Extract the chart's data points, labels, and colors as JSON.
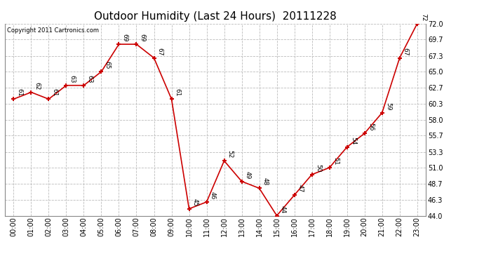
{
  "title": "Outdoor Humidity (Last 24 Hours)  20111228",
  "copyright": "Copyright 2011 Cartronics.com",
  "x_labels": [
    "00:00",
    "01:00",
    "02:00",
    "03:00",
    "04:00",
    "05:00",
    "06:00",
    "07:00",
    "08:00",
    "09:00",
    "10:00",
    "11:00",
    "12:00",
    "13:00",
    "14:00",
    "15:00",
    "16:00",
    "17:00",
    "18:00",
    "19:00",
    "20:00",
    "21:00",
    "22:00",
    "23:00"
  ],
  "y_values": [
    61,
    62,
    61,
    63,
    63,
    65,
    69,
    69,
    67,
    61,
    45,
    46,
    52,
    49,
    48,
    44,
    47,
    50,
    51,
    54,
    56,
    59,
    67,
    72
  ],
  "ylim": [
    44.0,
    72.0
  ],
  "yticks": [
    44.0,
    46.3,
    48.7,
    51.0,
    53.3,
    55.7,
    58.0,
    60.3,
    62.7,
    65.0,
    67.3,
    69.7,
    72.0
  ],
  "line_color": "#cc0000",
  "marker": "+",
  "marker_size": 5,
  "marker_color": "#cc0000",
  "grid_color": "#bbbbbb",
  "grid_style": "--",
  "bg_color": "#ffffff",
  "plot_bg_color": "#ffffff",
  "title_fontsize": 11,
  "label_fontsize": 7,
  "annotation_fontsize": 6.5,
  "annotation_rotation": -90,
  "copyright_fontsize": 6
}
